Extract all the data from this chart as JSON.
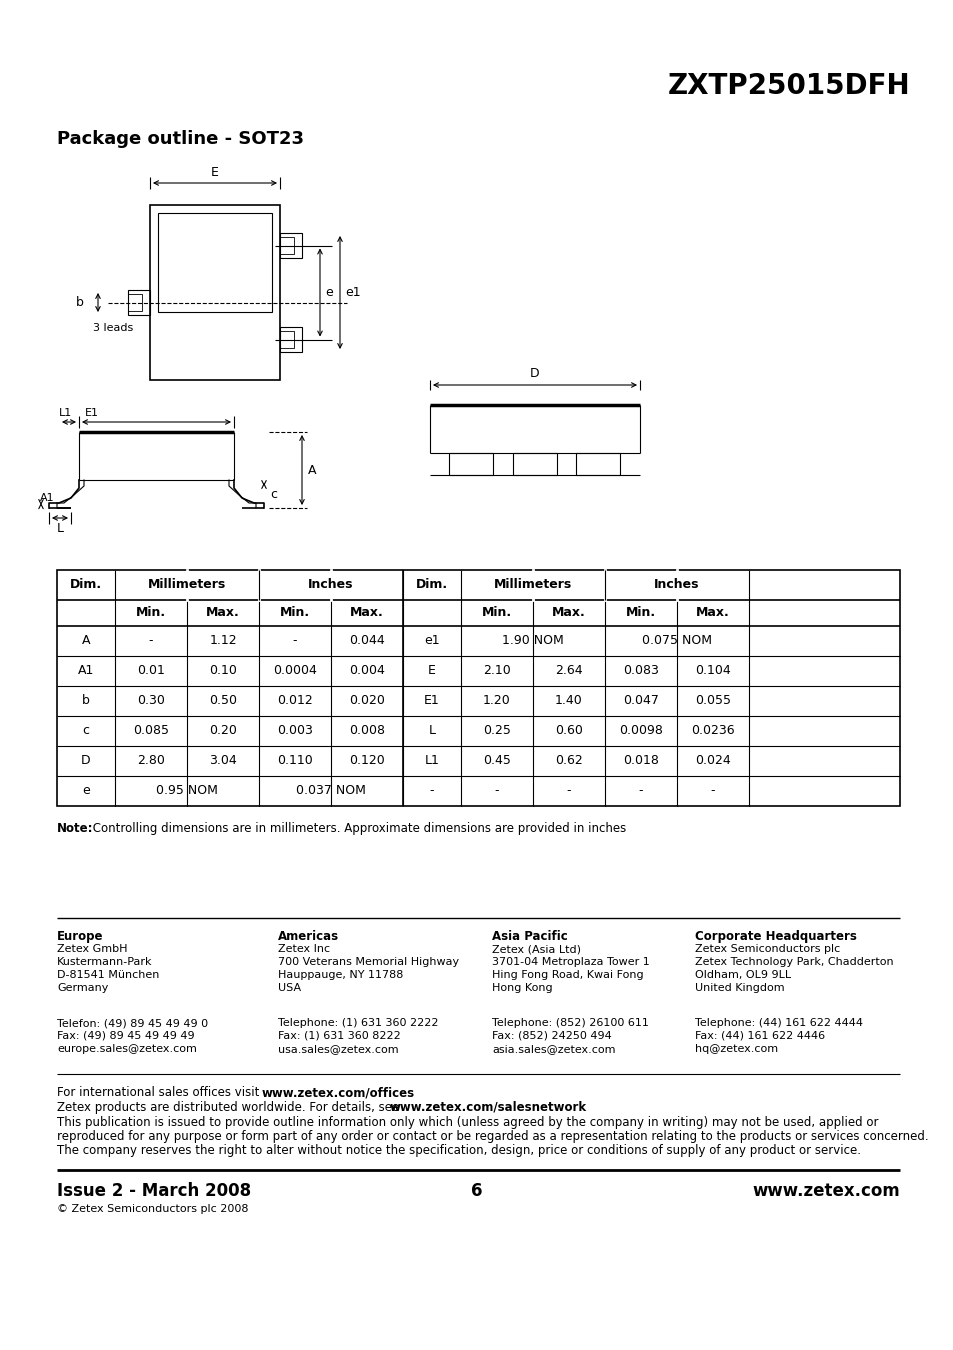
{
  "title": "ZXTP25015DFH",
  "section_title": "Package outline - SOT23",
  "bg_color": "#ffffff",
  "table_data": {
    "rows_left": [
      [
        "A",
        "-",
        "1.12",
        "-",
        "0.044"
      ],
      [
        "A1",
        "0.01",
        "0.10",
        "0.0004",
        "0.004"
      ],
      [
        "b",
        "0.30",
        "0.50",
        "0.012",
        "0.020"
      ],
      [
        "c",
        "0.085",
        "0.20",
        "0.003",
        "0.008"
      ],
      [
        "D",
        "2.80",
        "3.04",
        "0.110",
        "0.120"
      ],
      [
        "e",
        "0.95 NOM",
        "",
        "0.037 NOM",
        ""
      ]
    ],
    "rows_right": [
      [
        "e1",
        "1.90 NOM",
        "",
        "0.075 NOM",
        ""
      ],
      [
        "E",
        "2.10",
        "2.64",
        "0.083",
        "0.104"
      ],
      [
        "E1",
        "1.20",
        "1.40",
        "0.047",
        "0.055"
      ],
      [
        "L",
        "0.25",
        "0.60",
        "0.0098",
        "0.0236"
      ],
      [
        "L1",
        "0.45",
        "0.62",
        "0.018",
        "0.024"
      ],
      [
        "-",
        "-",
        "-",
        "-",
        "-"
      ]
    ]
  },
  "note_bold": "Note:",
  "note_rest": " Controlling dimensions are in millimeters. Approximate dimensions are provided in inches",
  "footer": {
    "europe_title": "Europe",
    "europe_lines": [
      "Zetex GmbH",
      "Kustermann-Park",
      "D-81541 München",
      "Germany"
    ],
    "europe_contact": [
      "Telefon: (49) 89 45 49 49 0",
      "Fax: (49) 89 45 49 49 49",
      "europe.sales@zetex.com"
    ],
    "americas_title": "Americas",
    "americas_lines": [
      "Zetex Inc",
      "700 Veterans Memorial Highway",
      "Hauppauge, NY 11788",
      "USA"
    ],
    "americas_contact": [
      "Telephone: (1) 631 360 2222",
      "Fax: (1) 631 360 8222",
      "usa.sales@zetex.com"
    ],
    "asia_title": "Asia Pacific",
    "asia_lines": [
      "Zetex (Asia Ltd)",
      "3701-04 Metroplaza Tower 1",
      "Hing Fong Road, Kwai Fong",
      "Hong Kong"
    ],
    "asia_contact": [
      "Telephone: (852) 26100 611",
      "Fax: (852) 24250 494",
      "asia.sales@zetex.com"
    ],
    "corp_title": "Corporate Headquarters",
    "corp_lines": [
      "Zetex Semiconductors plc",
      "Zetex Technology Park, Chadderton",
      "Oldham, OL9 9LL",
      "United Kingdom"
    ],
    "corp_contact": [
      "Telephone: (44) 161 622 4444",
      "Fax: (44) 161 622 4446",
      "hq@zetex.com"
    ],
    "issue": "Issue 2 - March 2008",
    "page": "6",
    "website": "www.zetex.com",
    "copyright": "© Zetex Semiconductors plc 2008"
  }
}
